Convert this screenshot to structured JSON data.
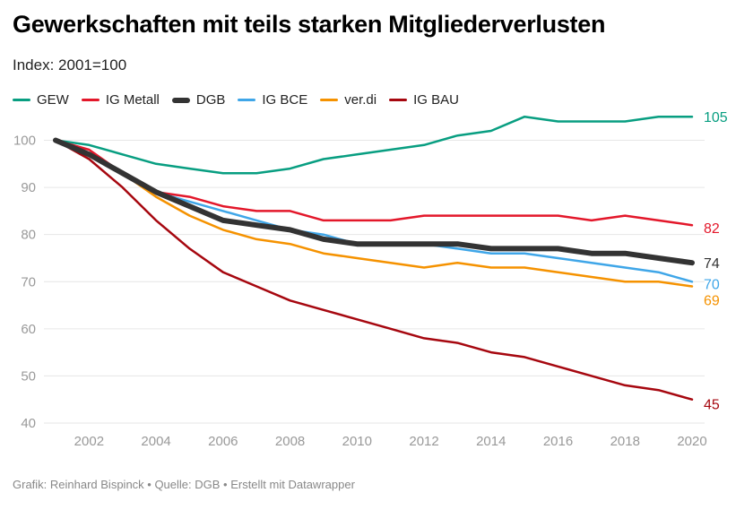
{
  "header": {
    "title": "Gewerkschaften mit teils starken Mitgliederverlusten",
    "subtitle": "Index: 2001=100"
  },
  "footer": {
    "text": "Grafik: Reinhard Bispinck • Quelle: DGB • Erstellt mit Datawrapper"
  },
  "chart_data": {
    "type": "line",
    "title": "Gewerkschaften mit teils starken Mitgliederverlusten",
    "subtitle": "Index: 2001=100",
    "xlabel": "",
    "ylabel": "",
    "x": [
      2001,
      2002,
      2003,
      2004,
      2005,
      2006,
      2007,
      2008,
      2009,
      2010,
      2011,
      2012,
      2013,
      2014,
      2015,
      2016,
      2017,
      2018,
      2019,
      2020
    ],
    "xlim": [
      2001,
      2020
    ],
    "ylim": [
      40,
      105
    ],
    "x_ticks": [
      "2002",
      "2004",
      "2006",
      "2008",
      "2010",
      "2012",
      "2014",
      "2016",
      "2018",
      "2020"
    ],
    "y_ticks": [
      "100",
      "90",
      "80",
      "70",
      "60",
      "50",
      "40"
    ],
    "grid": true,
    "legend_position": "top-left",
    "series": [
      {
        "name": "GEW",
        "color": "#089e81",
        "end_label": "105",
        "values": [
          100,
          99,
          97,
          95,
          94,
          93,
          93,
          94,
          96,
          97,
          98,
          99,
          101,
          102,
          105,
          104,
          104,
          104,
          105,
          105
        ]
      },
      {
        "name": "IG Metall",
        "color": "#e3172a",
        "end_label": "82",
        "values": [
          100,
          98,
          93,
          89,
          88,
          86,
          85,
          85,
          83,
          83,
          83,
          84,
          84,
          84,
          84,
          84,
          83,
          84,
          83,
          82
        ]
      },
      {
        "name": "DGB",
        "color": "#333333",
        "end_label": "74",
        "emphasis": true,
        "values": [
          100,
          97,
          93,
          89,
          86,
          83,
          82,
          81,
          79,
          78,
          78,
          78,
          78,
          77,
          77,
          77,
          76,
          76,
          75,
          74
        ]
      },
      {
        "name": "IG BCE",
        "color": "#3fa6e8",
        "end_label": "70",
        "values": [
          100,
          97,
          93,
          89,
          87,
          85,
          83,
          81,
          80,
          78,
          78,
          78,
          77,
          76,
          76,
          75,
          74,
          73,
          72,
          70
        ]
      },
      {
        "name": "ver.di",
        "color": "#f59200",
        "end_label": "69",
        "values": [
          100,
          97,
          93,
          88,
          84,
          81,
          79,
          78,
          76,
          75,
          74,
          73,
          74,
          73,
          73,
          72,
          71,
          70,
          70,
          69
        ]
      },
      {
        "name": "IG BAU",
        "color": "#a6070f",
        "end_label": "45",
        "values": [
          100,
          96,
          90,
          83,
          77,
          72,
          69,
          66,
          64,
          62,
          60,
          58,
          57,
          55,
          54,
          52,
          50,
          48,
          47,
          45
        ]
      }
    ]
  }
}
